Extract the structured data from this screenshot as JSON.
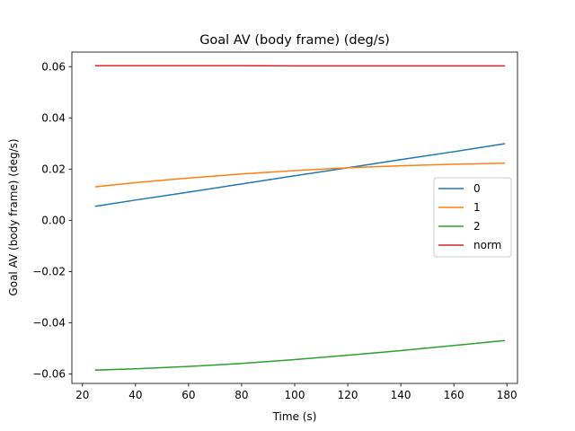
{
  "chart_data": {
    "type": "line",
    "title": "Goal AV (body frame) (deg/s)",
    "xlabel": "Time (s)",
    "ylabel": "Goal AV (body frame) (deg/s)",
    "xlim": [
      16,
      184
    ],
    "ylim": [
      -0.0637,
      0.0657
    ],
    "xticks": [
      20,
      40,
      60,
      80,
      100,
      120,
      140,
      160,
      180
    ],
    "xtick_labels": [
      "20",
      "40",
      "60",
      "80",
      "100",
      "120",
      "140",
      "160",
      "180"
    ],
    "yticks": [
      -0.06,
      -0.04,
      -0.02,
      0.0,
      0.02,
      0.04,
      0.06
    ],
    "ytick_labels": [
      "−0.06",
      "−0.04",
      "−0.02",
      "0.00",
      "0.02",
      "0.04",
      "0.06"
    ],
    "grid": false,
    "legend_position": "center-right",
    "x": [
      25,
      40,
      60,
      80,
      100,
      120,
      140,
      160,
      179
    ],
    "series": [
      {
        "name": "0",
        "color": "#1f77b4",
        "values": [
          0.0055,
          0.0079,
          0.011,
          0.0142,
          0.0174,
          0.0205,
          0.0237,
          0.0268,
          0.0299
        ]
      },
      {
        "name": "1",
        "color": "#ff7f0e",
        "values": [
          0.0131,
          0.0147,
          0.0165,
          0.0181,
          0.0194,
          0.0205,
          0.0213,
          0.0219,
          0.0223
        ]
      },
      {
        "name": "2",
        "color": "#2ca02c",
        "values": [
          -0.0585,
          -0.058,
          -0.0571,
          -0.0559,
          -0.0544,
          -0.0527,
          -0.0509,
          -0.0489,
          -0.047
        ]
      },
      {
        "name": "norm",
        "color": "#d62728",
        "values": [
          0.0604,
          0.0604,
          0.0604,
          0.0604,
          0.0603,
          0.0603,
          0.0603,
          0.0603,
          0.0603
        ]
      }
    ]
  }
}
